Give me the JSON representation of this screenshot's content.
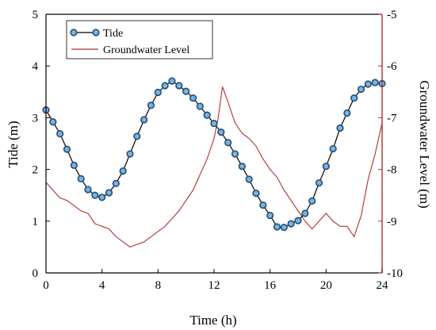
{
  "chart_data": {
    "type": "line",
    "xlabel": "Time (h)",
    "ylabel": "Tide (m)",
    "y2label": "Groundwater Level (m)",
    "xlim": [
      0,
      24
    ],
    "ylim": [
      0,
      5
    ],
    "y2lim": [
      -10,
      -5
    ],
    "xticks": [
      0,
      4,
      8,
      12,
      16,
      20,
      24
    ],
    "yticks": [
      0,
      1,
      2,
      3,
      4,
      5
    ],
    "y2ticks": [
      -10,
      -9,
      -8,
      -7,
      -6,
      -5
    ],
    "grid": false,
    "legend_position": "top-left",
    "series": [
      {
        "name": "Tide",
        "axis": "left",
        "color": "#1f4e79",
        "marker": "circle",
        "marker_fill": "#7fb2d9",
        "x": [
          0.0,
          0.5,
          1.0,
          1.5,
          2.0,
          2.5,
          3.0,
          3.5,
          4.0,
          4.5,
          5.0,
          5.5,
          6.0,
          6.5,
          7.0,
          7.5,
          8.0,
          8.5,
          9.0,
          9.5,
          10.0,
          10.5,
          11.0,
          11.5,
          12.0,
          12.5,
          13.0,
          13.5,
          14.0,
          14.5,
          15.0,
          15.5,
          16.0,
          16.5,
          17.0,
          17.5,
          18.0,
          18.5,
          19.0,
          19.5,
          20.0,
          20.5,
          21.0,
          21.5,
          22.0,
          22.5,
          23.0,
          23.5,
          24.0
        ],
        "values": [
          3.15,
          2.92,
          2.69,
          2.39,
          2.08,
          1.82,
          1.61,
          1.5,
          1.46,
          1.55,
          1.73,
          1.97,
          2.3,
          2.64,
          2.96,
          3.24,
          3.49,
          3.62,
          3.71,
          3.62,
          3.51,
          3.38,
          3.22,
          3.05,
          2.89,
          2.72,
          2.52,
          2.3,
          2.06,
          1.81,
          1.54,
          1.31,
          1.11,
          0.89,
          0.88,
          0.95,
          1.01,
          1.15,
          1.39,
          1.74,
          2.06,
          2.4,
          2.8,
          3.09,
          3.38,
          3.55,
          3.65,
          3.68,
          3.66
        ]
      },
      {
        "name": "Groundwater Level",
        "axis": "right",
        "color": "#b03030",
        "x": [
          0.0,
          0.5,
          1.0,
          1.5,
          2.0,
          2.5,
          3.0,
          3.5,
          4.0,
          4.5,
          5.0,
          5.5,
          6.0,
          6.5,
          7.0,
          7.5,
          8.0,
          8.5,
          9.0,
          9.5,
          10.0,
          10.5,
          11.0,
          11.5,
          12.0,
          12.3,
          12.6,
          13.0,
          13.5,
          14.0,
          14.5,
          15.0,
          15.5,
          16.0,
          16.5,
          17.0,
          17.5,
          18.0,
          18.5,
          19.0,
          19.5,
          20.0,
          20.5,
          21.0,
          21.5,
          22.0,
          22.5,
          23.0,
          23.5,
          24.0
        ],
        "values": [
          -8.25,
          -8.4,
          -8.55,
          -8.6,
          -8.7,
          -8.8,
          -8.85,
          -9.05,
          -9.1,
          -9.15,
          -9.3,
          -9.4,
          -9.5,
          -9.45,
          -9.4,
          -9.3,
          -9.2,
          -9.1,
          -8.95,
          -8.8,
          -8.6,
          -8.4,
          -8.1,
          -7.8,
          -7.4,
          -7.0,
          -6.4,
          -6.7,
          -7.1,
          -7.3,
          -7.4,
          -7.55,
          -7.8,
          -8.0,
          -8.15,
          -8.4,
          -8.6,
          -8.8,
          -9.0,
          -9.15,
          -9.0,
          -8.85,
          -9.0,
          -9.1,
          -9.1,
          -9.3,
          -8.9,
          -8.2,
          -7.7,
          -7.1
        ]
      }
    ]
  }
}
